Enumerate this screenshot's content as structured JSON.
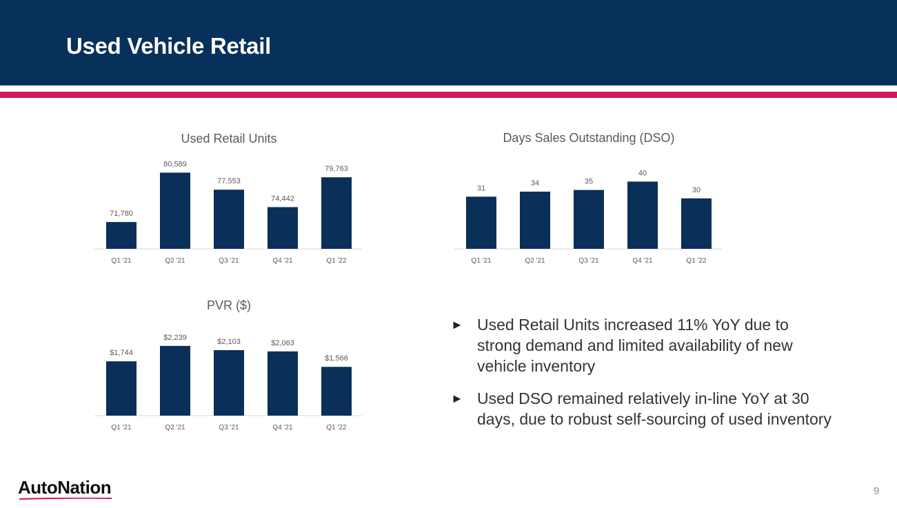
{
  "header": {
    "title": "Used Vehicle Retail"
  },
  "colors": {
    "header_bg": "#07315a",
    "accent": "#d6145f",
    "bar": "#0a2f58"
  },
  "chart_data": [
    {
      "type": "bar",
      "title": "Used Retail Units",
      "categories": [
        "Q1 '21",
        "Q2 '21",
        "Q3 '21",
        "Q4 '21",
        "Q1 '22"
      ],
      "values": [
        71780,
        80589,
        77553,
        74442,
        79763
      ],
      "labels": [
        "71,780",
        "80,589",
        "77,553",
        "74,442",
        "79,763"
      ],
      "ylim": [
        67000,
        82000
      ]
    },
    {
      "type": "bar",
      "title": "Days Sales Outstanding (DSO)",
      "categories": [
        "Q1 '21",
        "Q2 '21",
        "Q3 '21",
        "Q4 '21",
        "Q1 '22"
      ],
      "values": [
        31,
        34,
        35,
        40,
        30
      ],
      "labels": [
        "31",
        "34",
        "35",
        "40",
        "30"
      ],
      "ylim": [
        0,
        50
      ]
    },
    {
      "type": "bar",
      "title": "PVR ($)",
      "categories": [
        "Q1 '21",
        "Q2 '21",
        "Q3 '21",
        "Q4 '21",
        "Q1 '22"
      ],
      "values": [
        1744,
        2239,
        2103,
        2063,
        1566
      ],
      "labels": [
        "$1,744",
        "$2,239",
        "$2,103",
        "$2,063",
        "$1,566"
      ],
      "ylim": [
        0,
        2700
      ]
    }
  ],
  "bullets": [
    "Used Retail Units increased 11% YoY due to strong demand and limited availability of new vehicle inventory",
    "Used DSO remained relatively in-line YoY at 30 days, due to robust self-sourcing of used inventory"
  ],
  "bullet_marker": "►",
  "footer": {
    "logo": "AutoNation",
    "page_number": "9"
  }
}
